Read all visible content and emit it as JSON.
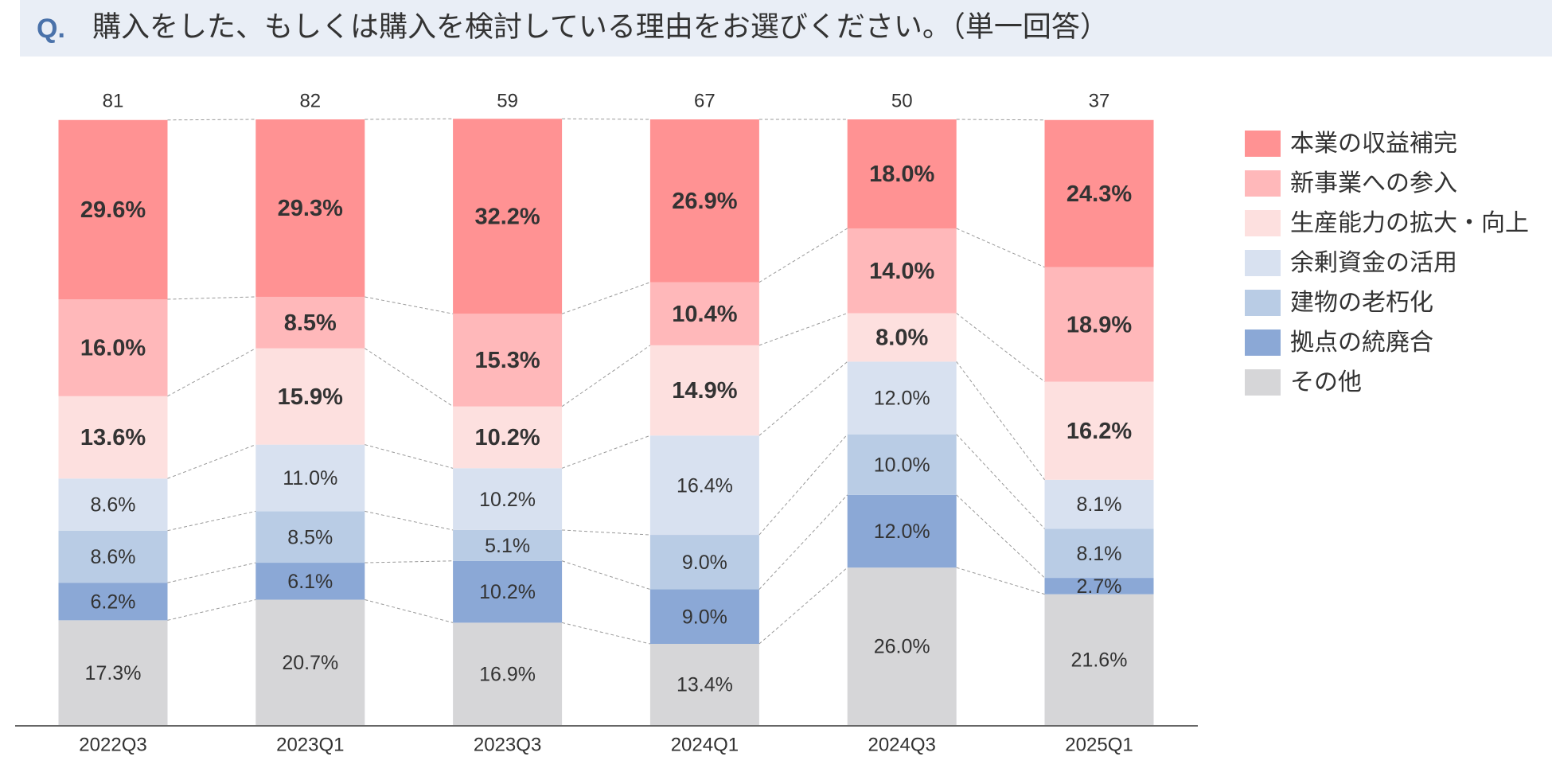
{
  "chart_data": {
    "type": "stacked_bar_100",
    "title_prefix": "Q.",
    "title": "購入をした、もしくは購入を検討している理由をお選びください。（単一回答）",
    "categories": [
      "2022Q3",
      "2023Q1",
      "2023Q3",
      "2024Q1",
      "2024Q3",
      "2025Q1"
    ],
    "totals": [
      81,
      82,
      59,
      67,
      50,
      37
    ],
    "ylim": [
      0,
      100
    ],
    "series": [
      {
        "name": "本業の収益補完",
        "color": "#ff9293",
        "values": [
          29.6,
          29.3,
          32.2,
          26.9,
          18.0,
          24.3
        ],
        "value_labels": [
          "29.6%",
          "29.3%",
          "32.2%",
          "26.9%",
          "18.0%",
          "24.3%"
        ]
      },
      {
        "name": "新事業への参入",
        "color": "#ffb8ba",
        "values": [
          16.0,
          8.5,
          15.3,
          10.4,
          14.0,
          18.9
        ],
        "value_labels": [
          "16.0%",
          "8.5%",
          "15.3%",
          "10.4%",
          "14.0%",
          "18.9%"
        ]
      },
      {
        "name": "生産能力の拡大・向上",
        "color": "#fde0df",
        "values": [
          13.6,
          15.9,
          10.2,
          14.9,
          8.0,
          16.2
        ],
        "value_labels": [
          "13.6%",
          "15.9%",
          "10.2%",
          "14.9%",
          "8.0%",
          "16.2%"
        ]
      },
      {
        "name": "余剰資金の活用",
        "color": "#d8e1f0",
        "values": [
          8.6,
          11.0,
          10.2,
          16.4,
          12.0,
          8.1
        ],
        "value_labels": [
          "8.6%",
          "11.0%",
          "10.2%",
          "16.4%",
          "12.0%",
          "8.1%"
        ]
      },
      {
        "name": "建物の老朽化",
        "color": "#b9cce5",
        "values": [
          8.6,
          8.5,
          5.1,
          9.0,
          10.0,
          8.1
        ],
        "value_labels": [
          "8.6%",
          "8.5%",
          "5.1%",
          "9.0%",
          "10.0%",
          "8.1%"
        ]
      },
      {
        "name": "拠点の統廃合",
        "color": "#8ba8d6",
        "values": [
          6.2,
          6.1,
          10.2,
          9.0,
          12.0,
          2.7
        ],
        "value_labels": [
          "6.2%",
          "6.1%",
          "10.2%",
          "9.0%",
          "12.0%",
          "2.7%"
        ]
      },
      {
        "name": "その他",
        "color": "#d6d6d8",
        "values": [
          17.3,
          20.7,
          16.9,
          13.4,
          26.0,
          21.6
        ],
        "value_labels": [
          "17.3%",
          "20.7%",
          "16.9%",
          "13.4%",
          "26.0%",
          "21.6%"
        ]
      }
    ]
  }
}
